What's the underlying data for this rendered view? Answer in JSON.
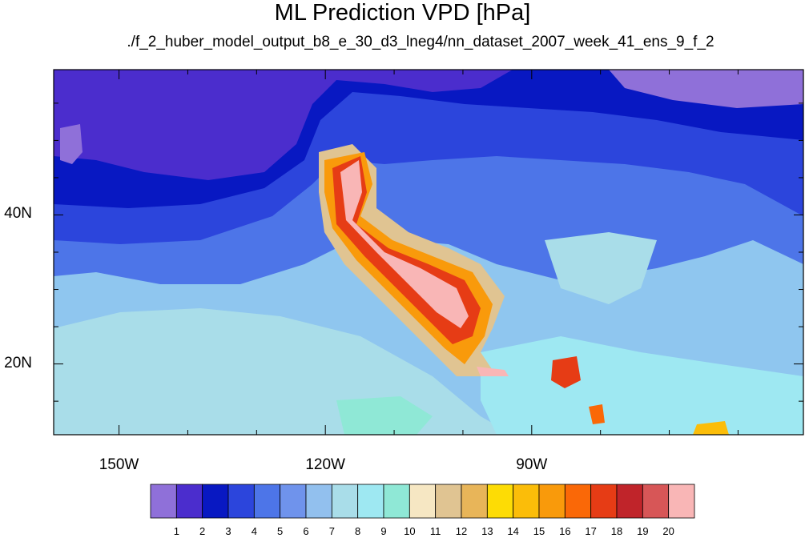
{
  "title": "ML Prediction VPD [hPa]",
  "subtitle": "./f_2_huber_model_output_b8_e_30_d3_lneg4/nn_dataset_2007_week_41_ens_9_f_2",
  "map": {
    "projection": "cylindrical-equidistant",
    "lon_range": [
      -159.5,
      -50.5
    ],
    "lat_range": [
      10.5,
      59.5
    ],
    "lon_ticks": [
      {
        "value": -150,
        "label": "150W"
      },
      {
        "value": -120,
        "label": "120W"
      },
      {
        "value": -90,
        "label": "90W"
      }
    ],
    "lat_ticks": [
      {
        "value": 40,
        "label": "40N"
      },
      {
        "value": 20,
        "label": "20N"
      }
    ],
    "ocean_tint": "#9fdde8",
    "border_color": "#000000"
  },
  "colorbar": {
    "labels": [
      "1",
      "2",
      "3",
      "4",
      "5",
      "6",
      "7",
      "8",
      "9",
      "10",
      "11",
      "12",
      "13",
      "14",
      "15",
      "16",
      "17",
      "18",
      "19",
      "20"
    ],
    "colors": [
      "#8f70d9",
      "#4b2dcd",
      "#0818c2",
      "#2c45dc",
      "#4d75e8",
      "#6f93ec",
      "#92c0ee",
      "#a9dde9",
      "#9ee8f2",
      "#8fe8d6",
      "#f6e7c3",
      "#e0c492",
      "#e8b559",
      "#fddc05",
      "#fbbd09",
      "#f99a0b",
      "#fa6807",
      "#e63c15",
      "#c0242a",
      "#d75657",
      "#f9b6b6"
    ]
  }
}
